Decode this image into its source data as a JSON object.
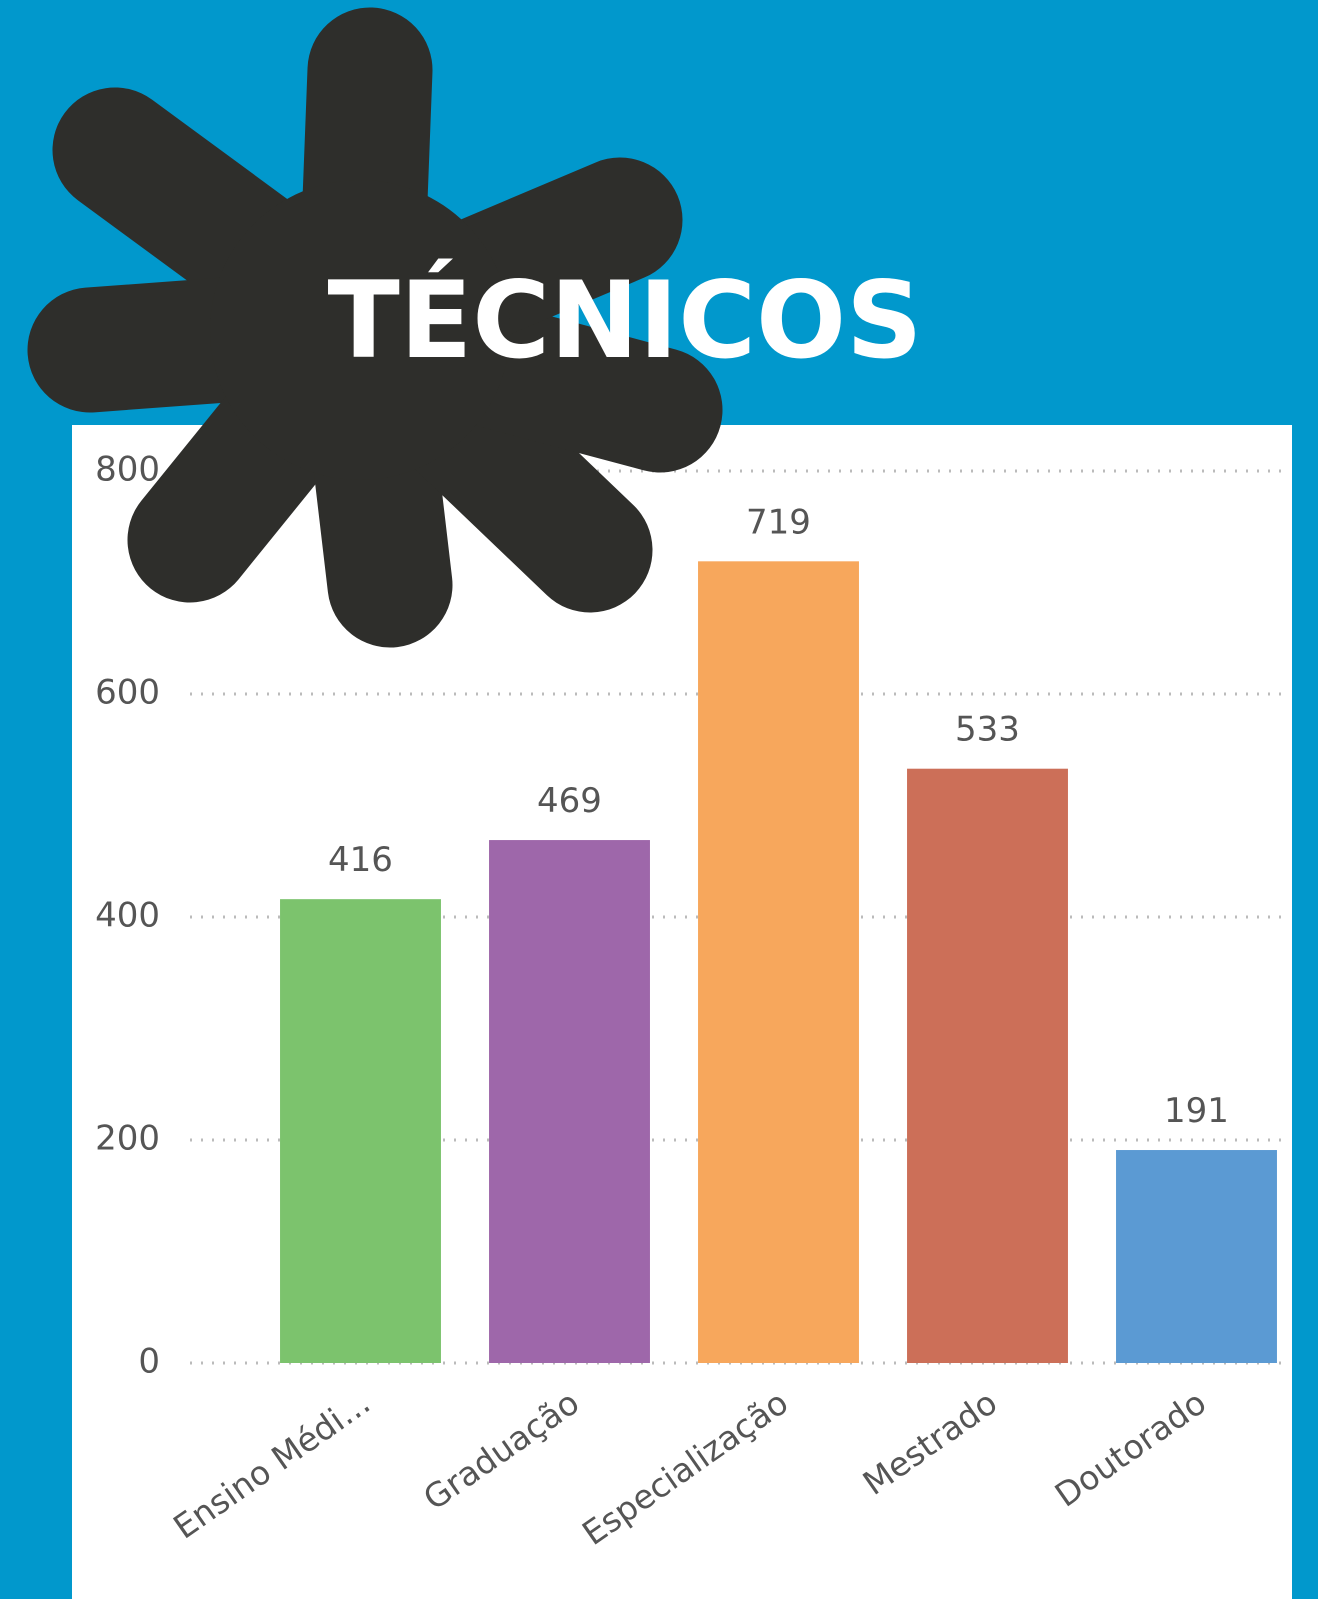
{
  "chart_data": {
    "type": "bar",
    "title": "TÉCNICOS",
    "categories": [
      "Ensino Médi...",
      "Graduação",
      "Especialização",
      "Mestrado",
      "Doutorado"
    ],
    "values": [
      416,
      469,
      719,
      533,
      191
    ],
    "colors": [
      "#7cc36d",
      "#9e67aa",
      "#f7a75c",
      "#cc6f58",
      "#5b9ad3"
    ],
    "ylim": [
      0,
      800
    ],
    "yticks": [
      0,
      200,
      400,
      600,
      800
    ],
    "grid": true
  }
}
